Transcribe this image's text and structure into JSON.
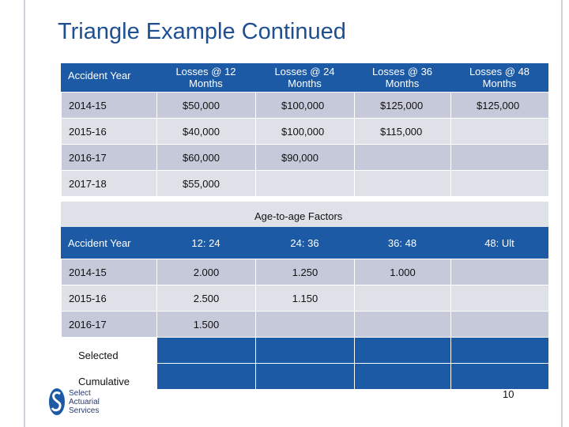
{
  "title": "Triangle Example Continued",
  "losses": {
    "headers": [
      "Accident Year",
      "Losses @ 12 Months",
      "Losses @ 24 Months",
      "Losses @ 36 Months",
      "Losses @ 48 Months"
    ],
    "rows": [
      [
        "2014-15",
        "$50,000",
        "$100,000",
        "$125,000",
        "$125,000"
      ],
      [
        "2015-16",
        "$40,000",
        "$100,000",
        "$115,000",
        ""
      ],
      [
        "2016-17",
        "$60,000",
        "$90,000",
        "",
        ""
      ],
      [
        "2017-18",
        "$55,000",
        "",
        "",
        ""
      ]
    ]
  },
  "factors": {
    "caption": "Age-to-age Factors",
    "headers": [
      "Accident Year",
      "12: 24",
      "24: 36",
      "36: 48",
      "48: Ult"
    ],
    "rows": [
      [
        "2014-15",
        "2.000",
        "1.250",
        "1.000",
        ""
      ],
      [
        "2015-16",
        "2.500",
        "1.150",
        "",
        ""
      ],
      [
        "2016-17",
        "1.500",
        "",
        "",
        ""
      ]
    ],
    "selected_label": "Selected",
    "cumulative_label": "Cumulative"
  },
  "logo": {
    "line1": "Select",
    "line2": "Actuarial",
    "line3": "Services"
  },
  "page_number": "10",
  "colors": {
    "title": "#1d4f91",
    "header_fill": "#1c5aa5",
    "row_light": "#dfe1e9",
    "row_dark": "#c6c9d9"
  }
}
